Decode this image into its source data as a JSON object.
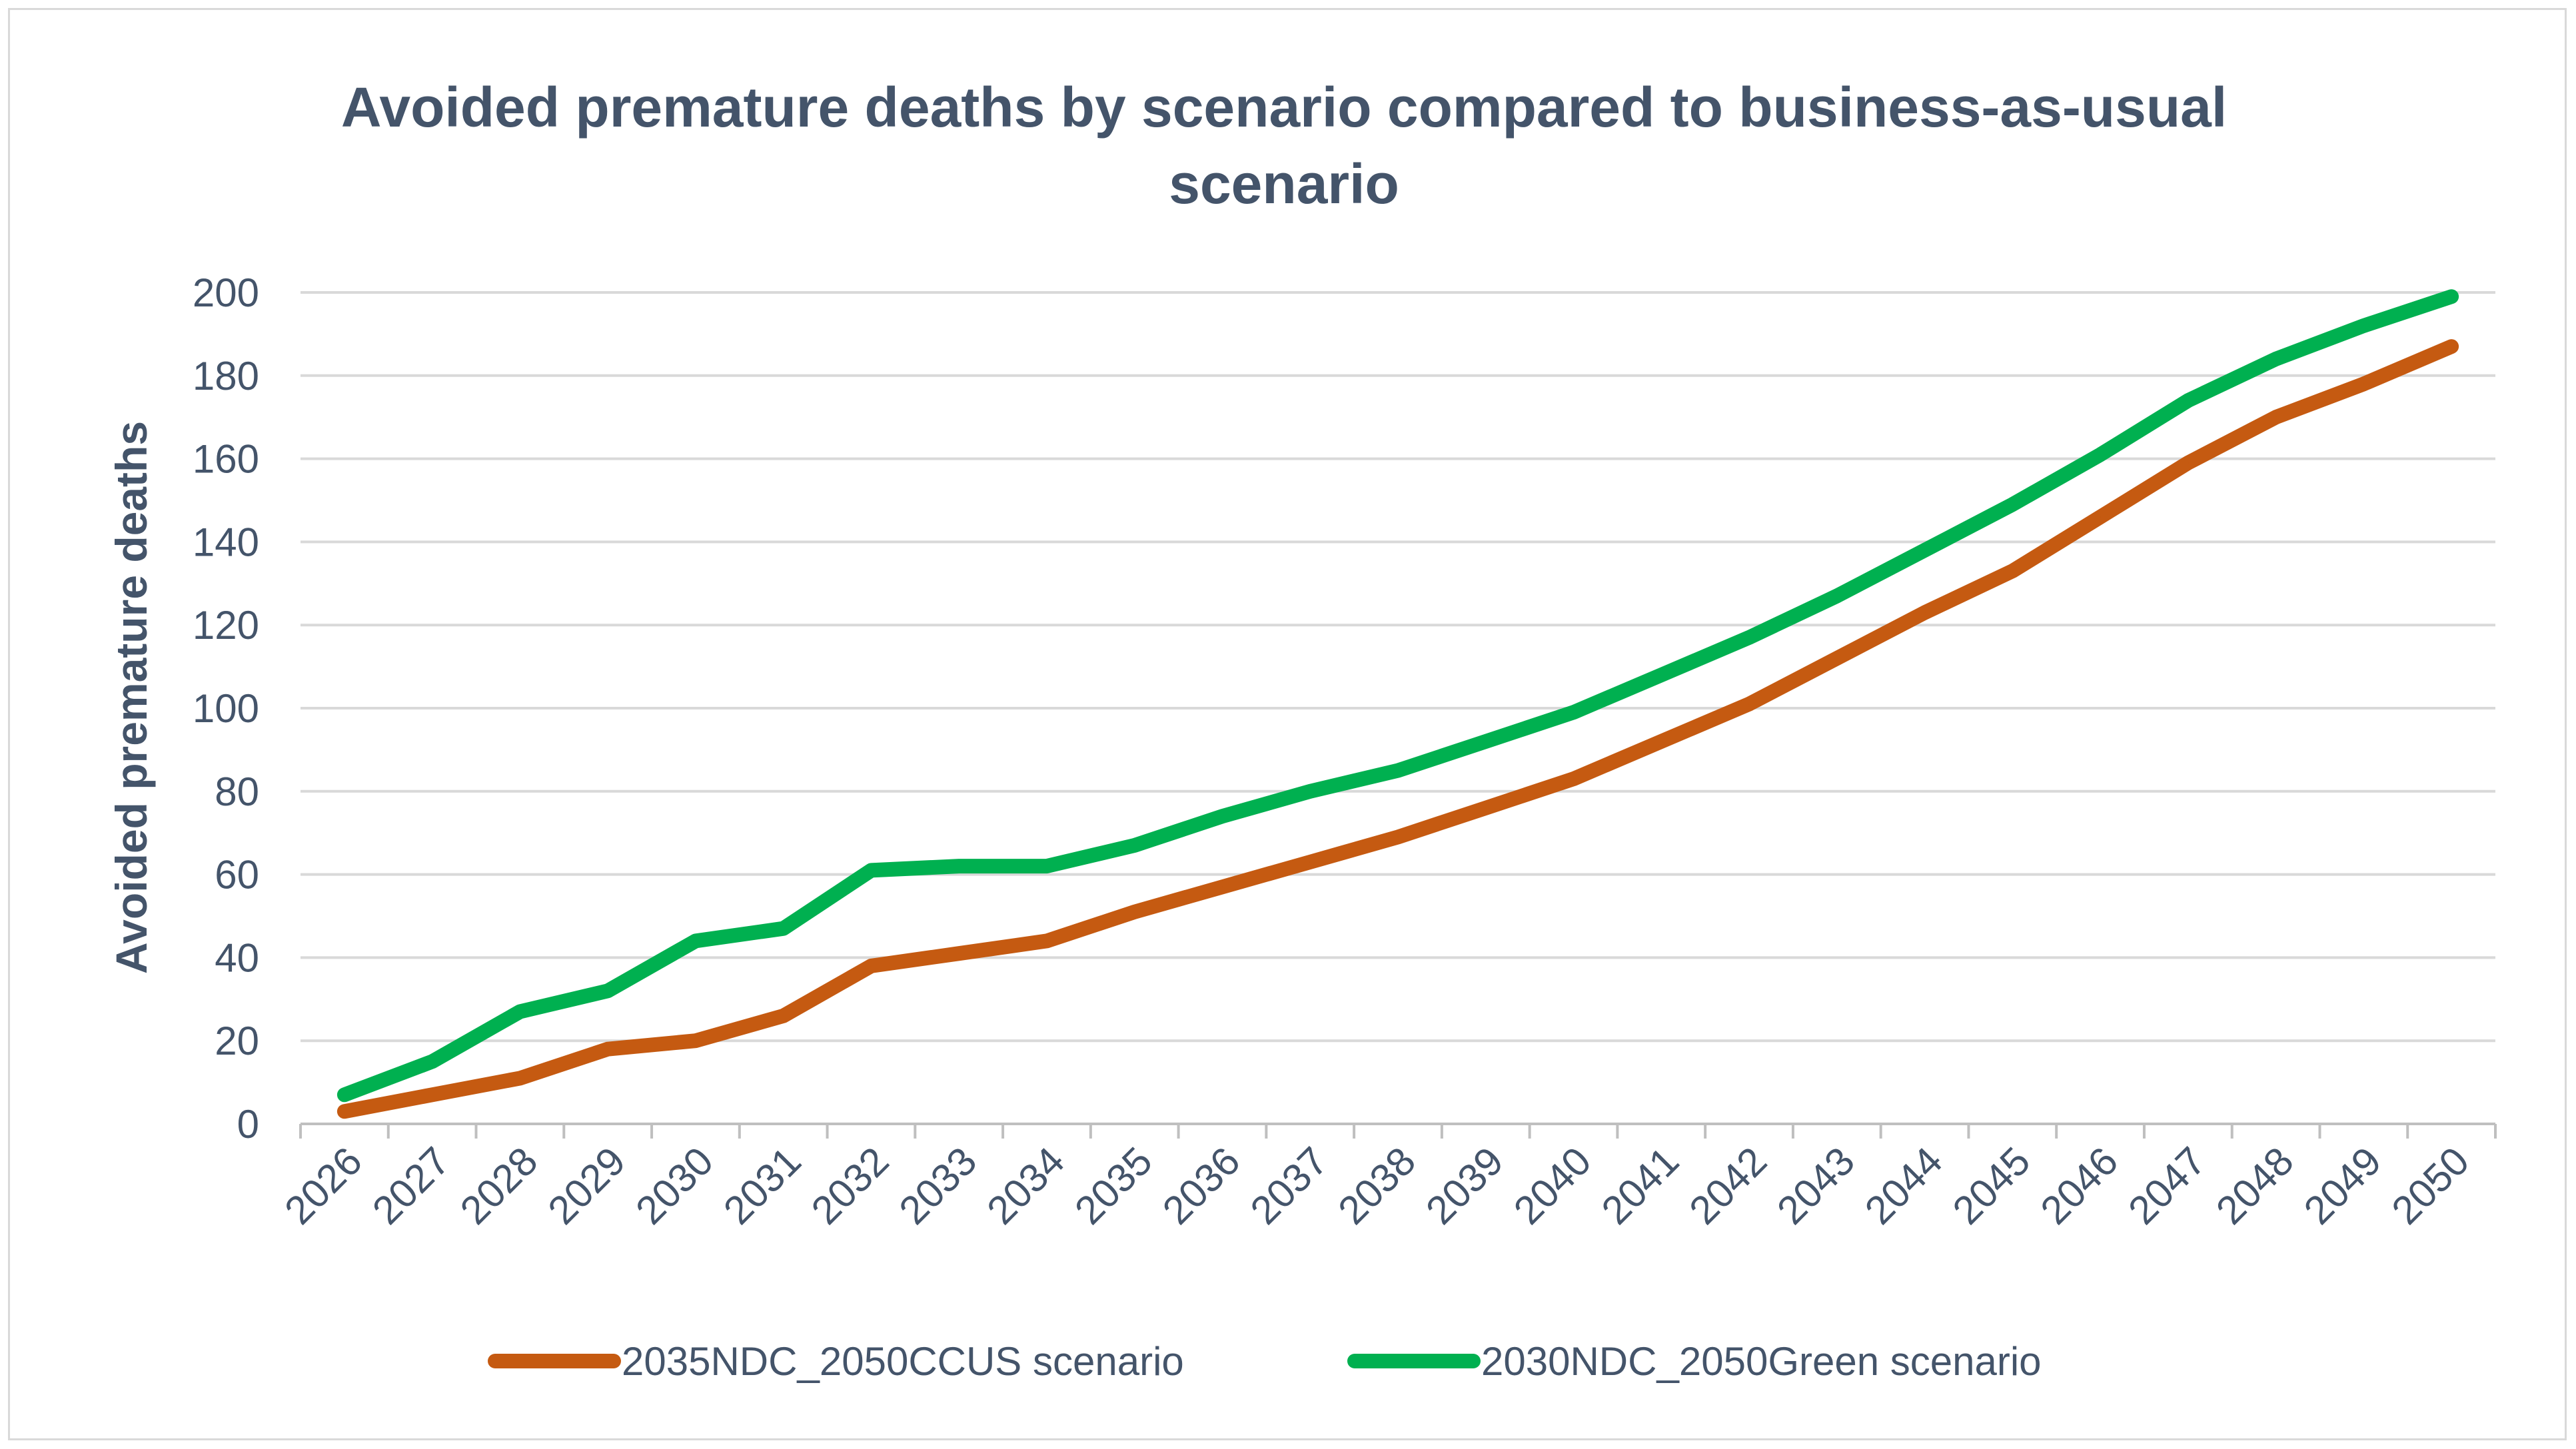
{
  "chart_data": {
    "type": "line",
    "title_lines": [
      "Avoided premature deaths by scenario compared to business-as-usual",
      "scenario"
    ],
    "xlabel": "",
    "ylabel": "Avoided premature deaths",
    "ylim": [
      0,
      200
    ],
    "yticks": [
      0,
      20,
      40,
      60,
      80,
      100,
      120,
      140,
      160,
      180,
      200
    ],
    "grid": true,
    "legend_position": "bottom",
    "categories": [
      "2026",
      "2027",
      "2028",
      "2029",
      "2030",
      "2031",
      "2032",
      "2033",
      "2034",
      "2035",
      "2036",
      "2037",
      "2038",
      "2039",
      "2040",
      "2041",
      "2042",
      "2043",
      "2044",
      "2045",
      "2046",
      "2047",
      "2048",
      "2049",
      "2050"
    ],
    "series": [
      {
        "name": "2035NDC_2050CCUS scenario",
        "color": "#c55a11",
        "values": [
          3,
          7,
          11,
          18,
          20,
          26,
          38,
          41,
          44,
          51,
          57,
          63,
          69,
          76,
          83,
          92,
          101,
          112,
          123,
          133,
          146,
          159,
          170,
          178,
          187
        ]
      },
      {
        "name": "2030NDC_2050Green scenario",
        "color": "#00b050",
        "values": [
          7,
          15,
          27,
          32,
          44,
          47,
          61,
          62,
          62,
          67,
          74,
          80,
          85,
          92,
          99,
          108,
          117,
          127,
          138,
          149,
          161,
          174,
          184,
          192,
          199
        ]
      }
    ],
    "colors": {
      "text": "#44546a",
      "grid": "#d9d9d9",
      "axis": "#bfbfbf"
    }
  }
}
